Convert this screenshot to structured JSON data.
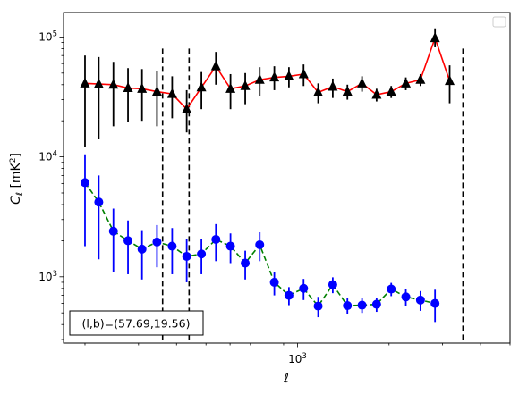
{
  "chart_data": {
    "type": "line",
    "xlabel": "ℓ",
    "ylabel_main": "C",
    "ylabel_sub": "ℓ",
    "ylabel_unit": "[mK",
    "ylabel_unit_sup": "2",
    "ylabel_unit_close": "]",
    "xscale": "log",
    "yscale": "log",
    "xlim": [
      170,
      5000
    ],
    "ylim": [
      280,
      160000
    ],
    "xticks": [
      {
        "value": 1000,
        "base": "10",
        "exp": "3"
      }
    ],
    "yticks": [
      {
        "value": 1000,
        "base": "10",
        "exp": "3"
      },
      {
        "value": 10000,
        "base": "10",
        "exp": "4"
      },
      {
        "value": 100000,
        "base": "10",
        "exp": "5"
      }
    ],
    "annotation": "(l,b)=(57.69,19.56)",
    "legend": "top-right",
    "vlines": [
      360,
      440,
      3500
    ],
    "colors": {
      "upper_line": "#ff0000",
      "upper_marker": "#000000",
      "lower_line": "#008000",
      "lower_marker": "#0000ff"
    },
    "series": [
      {
        "marker": "triangle",
        "linestyle": "solid",
        "points": [
          {
            "x": 200,
            "y": 41000,
            "lo": 12000,
            "hi": 70000
          },
          {
            "x": 222,
            "y": 40500,
            "lo": 14000,
            "hi": 68000
          },
          {
            "x": 248,
            "y": 40000,
            "lo": 18000,
            "hi": 62000
          },
          {
            "x": 277,
            "y": 37500,
            "lo": 19500,
            "hi": 55000
          },
          {
            "x": 308,
            "y": 37000,
            "lo": 20000,
            "hi": 54000
          },
          {
            "x": 345,
            "y": 35000,
            "lo": 18000,
            "hi": 52000
          },
          {
            "x": 387,
            "y": 33500,
            "lo": 21000,
            "hi": 47000
          },
          {
            "x": 432,
            "y": 25000,
            "lo": 16000,
            "hi": 36000
          },
          {
            "x": 483,
            "y": 38000,
            "lo": 25000,
            "hi": 51000
          },
          {
            "x": 539,
            "y": 57000,
            "lo": 40000,
            "hi": 75000
          },
          {
            "x": 602,
            "y": 37000,
            "lo": 25000,
            "hi": 49000
          },
          {
            "x": 673,
            "y": 39000,
            "lo": 27500,
            "hi": 50000
          },
          {
            "x": 751,
            "y": 44000,
            "lo": 32000,
            "hi": 56000
          },
          {
            "x": 839,
            "y": 46000,
            "lo": 36000,
            "hi": 57000
          },
          {
            "x": 937,
            "y": 47000,
            "lo": 38000,
            "hi": 56000
          },
          {
            "x": 1047,
            "y": 49000,
            "lo": 39000,
            "hi": 59000
          },
          {
            "x": 1169,
            "y": 34500,
            "lo": 28000,
            "hi": 41000
          },
          {
            "x": 1306,
            "y": 38500,
            "lo": 31000,
            "hi": 45000
          },
          {
            "x": 1459,
            "y": 35000,
            "lo": 30000,
            "hi": 40000
          },
          {
            "x": 1630,
            "y": 41000,
            "lo": 35000,
            "hi": 47000
          },
          {
            "x": 1820,
            "y": 33000,
            "lo": 29000,
            "hi": 37000
          },
          {
            "x": 2033,
            "y": 35000,
            "lo": 31000,
            "hi": 39000
          },
          {
            "x": 2271,
            "y": 41000,
            "lo": 36000,
            "hi": 46000
          },
          {
            "x": 2537,
            "y": 44000,
            "lo": 39000,
            "hi": 49000
          },
          {
            "x": 2833,
            "y": 98000,
            "lo": 82000,
            "hi": 118000
          },
          {
            "x": 3165,
            "y": 43000,
            "lo": 28000,
            "hi": 58000
          }
        ]
      },
      {
        "marker": "circle",
        "linestyle": "dashed",
        "points": [
          {
            "x": 200,
            "y": 6100,
            "lo": 1800,
            "hi": 10500
          },
          {
            "x": 222,
            "y": 4200,
            "lo": 1400,
            "hi": 7000
          },
          {
            "x": 248,
            "y": 2400,
            "lo": 1100,
            "hi": 3700
          },
          {
            "x": 277,
            "y": 2000,
            "lo": 1050,
            "hi": 2950
          },
          {
            "x": 308,
            "y": 1700,
            "lo": 950,
            "hi": 2450
          },
          {
            "x": 345,
            "y": 1950,
            "lo": 1200,
            "hi": 2700
          },
          {
            "x": 387,
            "y": 1800,
            "lo": 1050,
            "hi": 2550
          },
          {
            "x": 432,
            "y": 1480,
            "lo": 900,
            "hi": 2050
          },
          {
            "x": 483,
            "y": 1550,
            "lo": 1050,
            "hi": 2050
          },
          {
            "x": 539,
            "y": 2050,
            "lo": 1350,
            "hi": 2750
          },
          {
            "x": 602,
            "y": 1800,
            "lo": 1300,
            "hi": 2300
          },
          {
            "x": 673,
            "y": 1300,
            "lo": 950,
            "hi": 1650
          },
          {
            "x": 751,
            "y": 1850,
            "lo": 1350,
            "hi": 2350
          },
          {
            "x": 839,
            "y": 900,
            "lo": 700,
            "hi": 1100
          },
          {
            "x": 937,
            "y": 700,
            "lo": 580,
            "hi": 820
          },
          {
            "x": 1047,
            "y": 800,
            "lo": 640,
            "hi": 960
          },
          {
            "x": 1169,
            "y": 570,
            "lo": 460,
            "hi": 680
          },
          {
            "x": 1306,
            "y": 860,
            "lo": 730,
            "hi": 990
          },
          {
            "x": 1459,
            "y": 575,
            "lo": 490,
            "hi": 660
          },
          {
            "x": 1630,
            "y": 580,
            "lo": 500,
            "hi": 660
          },
          {
            "x": 1820,
            "y": 590,
            "lo": 510,
            "hi": 670
          },
          {
            "x": 2033,
            "y": 790,
            "lo": 690,
            "hi": 890
          },
          {
            "x": 2271,
            "y": 680,
            "lo": 570,
            "hi": 790
          },
          {
            "x": 2537,
            "y": 640,
            "lo": 520,
            "hi": 760
          },
          {
            "x": 2833,
            "y": 600,
            "lo": 420,
            "hi": 780
          }
        ]
      }
    ]
  }
}
